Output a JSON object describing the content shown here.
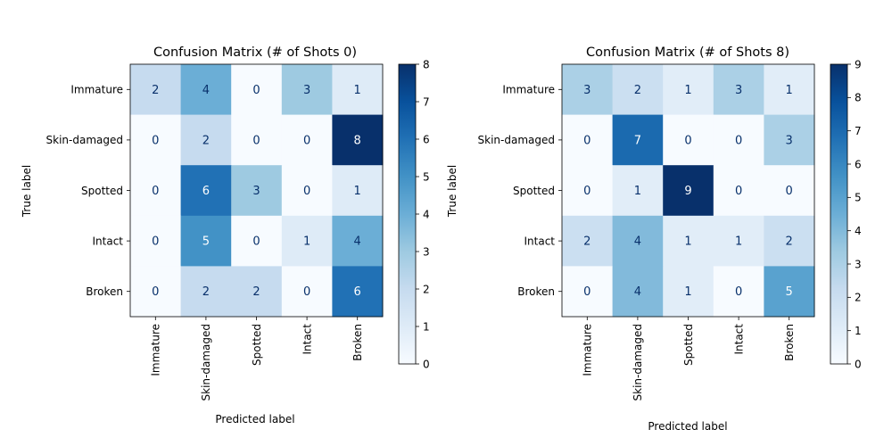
{
  "chart_data": [
    {
      "type": "heatmap",
      "title": "Confusion Matrix (# of Shots 0)",
      "xlabel": "Predicted label",
      "ylabel": "True label",
      "x_categories": [
        "Immature",
        "Skin-damaged",
        "Spotted",
        "Intact",
        "Broken"
      ],
      "y_categories": [
        "Immature",
        "Skin-damaged",
        "Spotted",
        "Intact",
        "Broken"
      ],
      "values": [
        [
          2,
          4,
          0,
          3,
          1
        ],
        [
          0,
          2,
          0,
          0,
          8
        ],
        [
          0,
          6,
          3,
          0,
          1
        ],
        [
          0,
          5,
          0,
          1,
          4
        ],
        [
          0,
          2,
          2,
          0,
          6
        ]
      ],
      "colormap": "Blues",
      "vmin": 0,
      "vmax": 8,
      "colorbar_ticks": [
        "0",
        "1",
        "2",
        "3",
        "4",
        "5",
        "6",
        "7",
        "8"
      ]
    },
    {
      "type": "heatmap",
      "title": "Confusion Matrix (# of Shots 8)",
      "xlabel": "Predicted label",
      "ylabel": "True label",
      "x_categories": [
        "Immature",
        "Skin-damaged",
        "Spotted",
        "Intact",
        "Broken"
      ],
      "y_categories": [
        "Immature",
        "Skin-damaged",
        "Spotted",
        "Intact",
        "Broken"
      ],
      "values": [
        [
          3,
          2,
          1,
          3,
          1
        ],
        [
          0,
          7,
          0,
          0,
          3
        ],
        [
          0,
          1,
          9,
          0,
          0
        ],
        [
          2,
          4,
          1,
          1,
          2
        ],
        [
          0,
          4,
          1,
          0,
          5
        ]
      ],
      "colormap": "Blues",
      "vmin": 0,
      "vmax": 9,
      "colorbar_ticks": [
        "0",
        "1",
        "2",
        "3",
        "4",
        "5",
        "6",
        "7",
        "8",
        "9"
      ]
    }
  ]
}
